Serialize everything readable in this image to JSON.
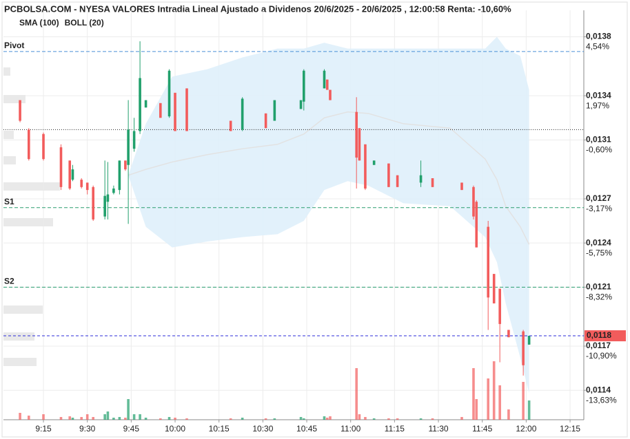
{
  "chart_data": {
    "type": "candlestick",
    "title": "PCBOLSA.COM - NYESA VALORES Intradia Lineal Ajustado a Dividenos 20/6/2025 - 20/6/2025 , 12:00:58 Renta: -10,60%",
    "indicators": [
      {
        "name": "SMA (100)",
        "color": "#8ec9ee"
      },
      {
        "name": "BOLL (20)",
        "color": "#d0d0d0"
      }
    ],
    "xlim": [
      541.33,
      739.7
    ],
    "xticks": [
      {
        "value": 555,
        "label": "9:15"
      },
      {
        "value": 570,
        "label": "9:30"
      },
      {
        "value": 585,
        "label": "9:45"
      },
      {
        "value": 600,
        "label": "10:00"
      },
      {
        "value": 615,
        "label": "10:15"
      },
      {
        "value": 630,
        "label": "10:30"
      },
      {
        "value": 645,
        "label": "10:45"
      },
      {
        "value": 660,
        "label": "11:00"
      },
      {
        "value": 675,
        "label": "11:15"
      },
      {
        "value": 690,
        "label": "11:30"
      },
      {
        "value": 705,
        "label": "11:45"
      },
      {
        "value": 720,
        "label": "12:00"
      },
      {
        "value": 735,
        "label": "12:15"
      }
    ],
    "ylim": [
      0.0112,
      0.01398
    ],
    "yticks": [
      {
        "value": 0.0138,
        "label": "0,0138"
      },
      {
        "value": 0.0134,
        "label": "0,0134"
      },
      {
        "value": 0.0131,
        "label": "0,0131"
      },
      {
        "value": 0.0127,
        "label": "0,0127"
      },
      {
        "value": 0.0124,
        "label": "0,0124"
      },
      {
        "value": 0.0121,
        "label": "0,0121"
      },
      {
        "value": 0.0117,
        "label": "0,0117"
      },
      {
        "value": 0.0114,
        "label": "0,0114"
      }
    ],
    "ytick_returns": [
      "4,54%",
      "1,97%",
      "-0,60%",
      "-3,17%",
      "-5,75%",
      "-8,32%",
      "-10,90%",
      "-13,63%"
    ],
    "grid": true,
    "up_color": "#21a06c",
    "down_color": "#f25c5c",
    "candles": {
      "x": [
        547,
        550,
        555,
        561,
        564,
        565,
        568,
        570,
        572,
        576,
        577,
        579,
        581,
        583,
        584,
        586,
        588,
        590,
        595,
        598,
        600,
        604,
        619,
        623,
        631,
        634,
        643,
        644,
        651,
        652,
        653,
        662,
        663,
        665,
        668,
        673,
        676,
        684,
        688,
        698,
        702,
        703,
        707,
        709,
        711,
        714,
        719,
        721
      ],
      "open": [
        0.01337,
        0.01317,
        0.01314,
        0.01305,
        0.01296,
        0.01283,
        0.01283,
        0.01281,
        0.01278,
        0.01258,
        0.01268,
        0.01274,
        0.01276,
        0.01296,
        0.01293,
        0.01304,
        0.01316,
        0.01332,
        0.01335,
        0.01326,
        0.01342,
        0.01345,
        0.01323,
        0.01317,
        0.01328,
        0.01323,
        0.01331,
        0.01336,
        0.01345,
        0.01351,
        0.01344,
        0.01329,
        0.01318,
        0.01307,
        0.01293,
        0.01294,
        0.01286,
        0.01281,
        0.01284,
        0.01281,
        0.01278,
        0.01268,
        0.01251,
        0.01219,
        0.01209,
        0.01181,
        0.0118,
        0.01171
      ],
      "high": [
        0.01337,
        0.01318,
        0.01315,
        0.01307,
        0.01296,
        0.01293,
        0.01284,
        0.01281,
        0.01279,
        0.01296,
        0.01295,
        0.01279,
        0.01296,
        0.01296,
        0.01337,
        0.01325,
        0.01377,
        0.01337,
        0.01335,
        0.01358,
        0.01342,
        0.01345,
        0.01323,
        0.01339,
        0.01328,
        0.01337,
        0.01337,
        0.01358,
        0.01358,
        0.01351,
        0.01344,
        0.01339,
        0.01318,
        0.01307,
        0.01296,
        0.01294,
        0.01286,
        0.01296,
        0.01284,
        0.01281,
        0.01279,
        0.01269,
        0.01255,
        0.01219,
        0.01209,
        0.01181,
        0.01181,
        0.01177
      ],
      "low": [
        0.01322,
        0.01296,
        0.01296,
        0.01276,
        0.01276,
        0.01282,
        0.01277,
        0.01273,
        0.01255,
        0.01256,
        0.01256,
        0.01273,
        0.01273,
        0.01289,
        0.01253,
        0.01302,
        0.01314,
        0.01332,
        0.01325,
        0.01325,
        0.01316,
        0.01316,
        0.01316,
        0.01316,
        0.01318,
        0.01323,
        0.01331,
        0.0133,
        0.01345,
        0.01344,
        0.01337,
        0.01277,
        0.01296,
        0.01276,
        0.01293,
        0.01278,
        0.01278,
        0.01278,
        0.01278,
        0.01276,
        0.01256,
        0.01237,
        0.01181,
        0.01199,
        0.01159,
        0.01176,
        0.0115,
        0.01171
      ],
      "close": [
        0.01323,
        0.01297,
        0.01297,
        0.01278,
        0.01277,
        0.0129,
        0.01278,
        0.01276,
        0.01256,
        0.01272,
        0.01273,
        0.01277,
        0.01296,
        0.0129,
        0.01317,
        0.01316,
        0.01352,
        0.01337,
        0.01325,
        0.01357,
        0.01316,
        0.01316,
        0.01316,
        0.01338,
        0.01318,
        0.01337,
        0.01337,
        0.01357,
        0.01357,
        0.01344,
        0.01337,
        0.01298,
        0.01296,
        0.01277,
        0.01296,
        0.01278,
        0.01278,
        0.01286,
        0.01278,
        0.01276,
        0.01258,
        0.01237,
        0.01203,
        0.01199,
        0.01185,
        0.01176,
        0.01157,
        0.01177
      ],
      "volume": [
        100,
        60,
        80,
        40,
        50,
        30,
        40,
        80,
        40,
        80,
        120,
        30,
        40,
        30,
        300,
        80,
        80,
        30,
        20,
        40,
        30,
        20,
        20,
        30,
        20,
        20,
        40,
        20,
        50,
        30,
        50,
        750,
        80,
        40,
        20,
        20,
        20,
        20,
        20,
        40,
        750,
        300,
        600,
        850,
        500,
        150,
        550,
        280
      ]
    },
    "bollinger": {
      "x": [
        584,
        590,
        599,
        611,
        623,
        635,
        644,
        651,
        659,
        666,
        678,
        694,
        706,
        710,
        713,
        718,
        721
      ],
      "upper": [
        0.01286,
        0.01321,
        0.01353,
        0.01358,
        0.01366,
        0.01372,
        0.01372,
        0.01376,
        0.01372,
        0.01372,
        0.01372,
        0.01372,
        0.01372,
        0.0138,
        0.01372,
        0.01367,
        0.01344
      ],
      "middle": [
        0.01286,
        0.0129,
        0.01295,
        0.013,
        0.01304,
        0.01307,
        0.01314,
        0.01325,
        0.01329,
        0.01328,
        0.01321,
        0.01318,
        0.01297,
        0.01283,
        0.01265,
        0.01251,
        0.01239
      ],
      "lower": [
        0.01286,
        0.01251,
        0.01237,
        0.01241,
        0.01244,
        0.01246,
        0.01255,
        0.01276,
        0.01282,
        0.01279,
        0.01267,
        0.01265,
        0.01244,
        0.01227,
        0.01199,
        0.01162,
        0.01138
      ]
    },
    "levels": [
      {
        "label": "Pivot",
        "value": 0.0137,
        "color": "#4a8fd6"
      },
      {
        "label": "S1",
        "value": 0.01264,
        "color": "#2a9d6f"
      },
      {
        "label": "S2",
        "value": 0.0121,
        "color": "#2a9d6f"
      }
    ],
    "reference_value": 0.01317,
    "last_price": {
      "value": 0.01177,
      "value_label": "0,0118",
      "color": "#2b2bd9",
      "label_color": "#f25c5c"
    }
  }
}
